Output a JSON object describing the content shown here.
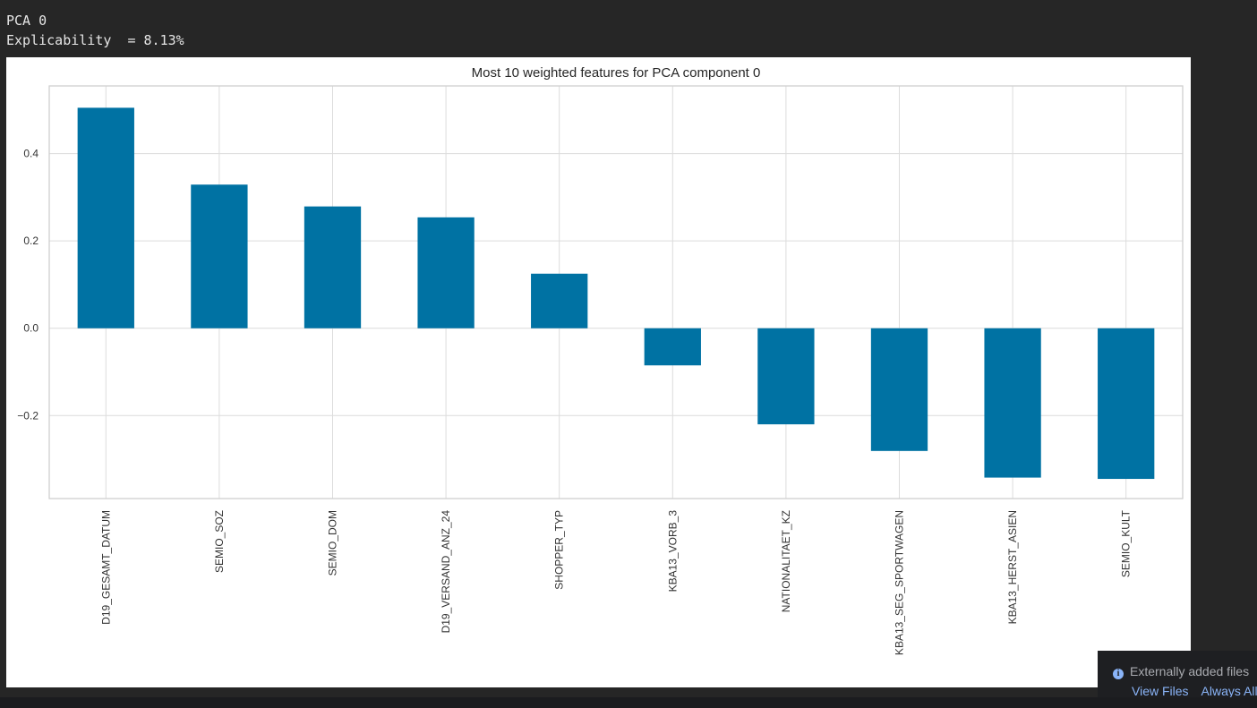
{
  "output": {
    "line1": "PCA 0",
    "line2": "Explicability  = 8.13%"
  },
  "chart_data": {
    "type": "bar",
    "title": "Most 10 weighted features for PCA component 0",
    "xlabel": "",
    "ylabel": "",
    "categories": [
      "D19_GESAMT_DATUM",
      "SEMIO_SOZ",
      "SEMIO_DOM",
      "D19_VERSAND_ANZ_24",
      "SHOPPER_TYP",
      "KBA13_VORB_3",
      "NATIONALITAET_KZ",
      "KBA13_SEG_SPORTWAGEN",
      "KBA13_HERST_ASIEN",
      "SEMIO_KULT"
    ],
    "values": [
      0.505,
      0.329,
      0.279,
      0.254,
      0.125,
      -0.085,
      -0.22,
      -0.281,
      -0.342,
      -0.345
    ],
    "ylim": [
      -0.39,
      0.555
    ],
    "yticks": [
      -0.2,
      0.0,
      0.2,
      0.4
    ],
    "ytick_labels": [
      "−0.2",
      "0.0",
      "0.2",
      "0.4"
    ],
    "grid": true,
    "bar_color": "#0072a3",
    "grid_color": "#dcdcdc"
  },
  "notification": {
    "icon": "info-icon",
    "message": "Externally added files",
    "action_view": "View Files",
    "action_always": "Always Allow"
  }
}
